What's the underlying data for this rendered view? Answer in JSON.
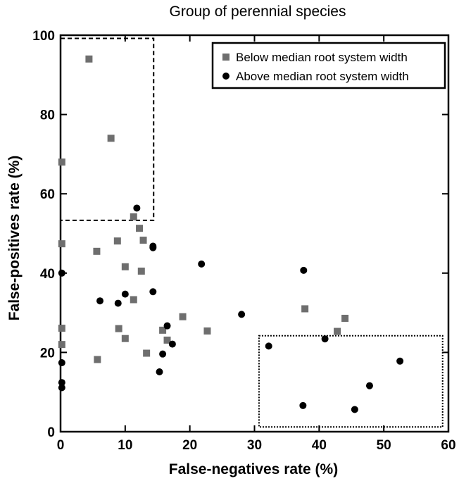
{
  "chart_data": {
    "type": "scatter",
    "title": "Group of perennial species",
    "xlabel": "False-negatives rate (%)",
    "ylabel": "False-positives rate (%)",
    "xlim": [
      0,
      60
    ],
    "ylim": [
      0,
      100
    ],
    "x_ticks": [
      "0",
      "10",
      "20",
      "30",
      "40",
      "50",
      "60"
    ],
    "y_ticks": [
      "0",
      "20",
      "40",
      "60",
      "80",
      "100"
    ],
    "grid": false,
    "legend_position": "top-right",
    "series": [
      {
        "name": "Below median root system width",
        "marker": "square",
        "color": "#6e6e6e",
        "points": [
          [
            4.4,
            94
          ],
          [
            7.8,
            74
          ],
          [
            0.2,
            68
          ],
          [
            0.2,
            47.4
          ],
          [
            5.6,
            45.5
          ],
          [
            0.2,
            26.1
          ],
          [
            0.2,
            22
          ],
          [
            5.7,
            18.2
          ],
          [
            8.8,
            48.1
          ],
          [
            10,
            41.6
          ],
          [
            9,
            26
          ],
          [
            10,
            23.5
          ],
          [
            11.3,
            54.2
          ],
          [
            12.2,
            51.3
          ],
          [
            12.8,
            48.3
          ],
          [
            12.5,
            40.5
          ],
          [
            11.3,
            33.3
          ],
          [
            13.3,
            19.8
          ],
          [
            15.8,
            25.6
          ],
          [
            16.5,
            23.1
          ],
          [
            18.9,
            29
          ],
          [
            22.7,
            25.4
          ],
          [
            37.8,
            31
          ],
          [
            44,
            28.6
          ],
          [
            42.8,
            25.3
          ]
        ]
      },
      {
        "name": "Above median root system width",
        "marker": "circle",
        "color": "#000000",
        "points": [
          [
            11.8,
            56.4
          ],
          [
            14.3,
            46.4
          ],
          [
            14.3,
            46.8
          ],
          [
            0.2,
            40
          ],
          [
            6.1,
            33
          ],
          [
            8.9,
            32.4
          ],
          [
            10,
            34.7
          ],
          [
            14.3,
            35.3
          ],
          [
            21.8,
            42.3
          ],
          [
            0.2,
            17.4
          ],
          [
            0.2,
            12.4
          ],
          [
            0.2,
            11.1
          ],
          [
            15.8,
            19.6
          ],
          [
            15.3,
            15.1
          ],
          [
            16.5,
            26.7
          ],
          [
            17.3,
            22.1
          ],
          [
            28,
            29.6
          ],
          [
            37.6,
            40.7
          ],
          [
            32.2,
            21.6
          ],
          [
            40.9,
            23.4
          ],
          [
            52.5,
            17.8
          ],
          [
            47.8,
            11.6
          ],
          [
            37.5,
            6.6
          ],
          [
            45.5,
            5.6
          ]
        ]
      }
    ],
    "annotations": [
      {
        "type": "dashed-rectangle",
        "x": [
          0,
          14.4
        ],
        "y": [
          53.3,
          99.2
        ]
      },
      {
        "type": "dotted-rectangle",
        "x": [
          30.7,
          59.1
        ],
        "y": [
          1.2,
          24.2
        ]
      }
    ]
  }
}
